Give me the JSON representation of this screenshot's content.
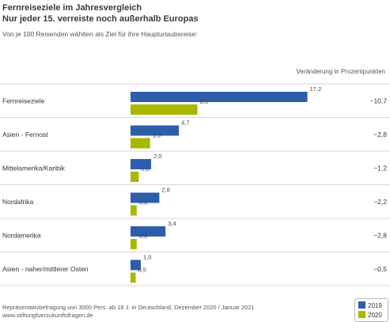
{
  "chart_data": {
    "type": "bar",
    "orientation": "horizontal",
    "title_line1": "Fernreiseziele im Jahresvergleich",
    "title_line2": "Nur jeder 15. verreiste noch außerhalb Europas",
    "subtitle": "Von je 100 Reisenden wählten als Ziel für ihre Haupturlaubsreise:",
    "change_header": "Veränderung in Prozentpunkten",
    "categories": [
      "Fernreiseziele",
      "Asien - Fernost",
      "Mittelamerika/Karibik",
      "Nordafrika",
      "Nordamerika",
      "Asien - naher/mittlerer Osten"
    ],
    "series": [
      {
        "name": "2019",
        "color": "#2e5eaa",
        "values": [
          17.2,
          4.7,
          2.0,
          2.8,
          3.4,
          1.0
        ],
        "labels": [
          "17,2",
          "4,7",
          "2,0",
          "2,8",
          "3,4",
          "1,0"
        ]
      },
      {
        "name": "2020",
        "color": "#a8b800",
        "values": [
          6.5,
          1.9,
          0.8,
          0.6,
          0.6,
          0.5
        ],
        "labels": [
          "6,5",
          "1,9",
          "0,8",
          "0,6",
          "0,6",
          "0,5"
        ]
      }
    ],
    "changes": [
      "−10,7",
      "−2,8",
      "−1,2",
      "−2,2",
      "−2,8",
      "−0,5"
    ],
    "xlim": [
      0,
      18
    ],
    "legend_position": "bottom-right"
  },
  "footer": {
    "source": "Repräsentativbefragung von 3000 Pers. ab 18 J. in Deutschland, Dezember 2020 / Januar 2021",
    "url": "www.stiftungfuerzukunftsfragen.de"
  }
}
